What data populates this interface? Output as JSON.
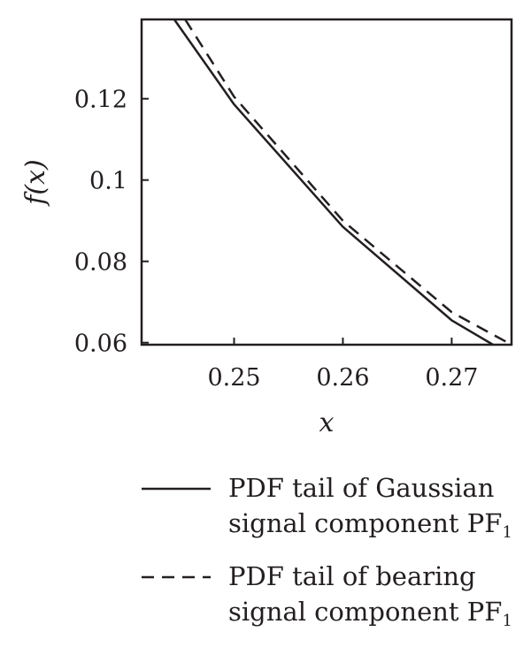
{
  "chart_data": {
    "type": "line",
    "xlabel": "x",
    "ylabel": "f(x)",
    "xlim": [
      0.2415,
      0.2755
    ],
    "ylim": [
      0.0595,
      0.1395
    ],
    "x_ticks": [
      0.25,
      0.26,
      0.27
    ],
    "x_tick_labels": [
      "0.25",
      "0.26",
      "0.27"
    ],
    "y_ticks": [
      0.06,
      0.08,
      0.1,
      0.12
    ],
    "y_tick_labels": [
      "0.06",
      "0.08",
      "0.1",
      "0.12"
    ],
    "grid": false,
    "legend_position": "bottom",
    "series": [
      {
        "name": "PDF tail of Gaussian signal component PF1",
        "style": "solid",
        "color": "#231f20",
        "x": [
          0.2445,
          0.25,
          0.26,
          0.27,
          0.2738
        ],
        "y": [
          0.1395,
          0.1186,
          0.0885,
          0.0655,
          0.0595
        ]
      },
      {
        "name": "PDF tail of bearing signal component PF1",
        "style": "dashed",
        "color": "#231f20",
        "x": [
          0.2455,
          0.25,
          0.26,
          0.27,
          0.2755
        ],
        "y": [
          0.1395,
          0.1205,
          0.09,
          0.0675,
          0.0595
        ]
      }
    ]
  },
  "legend": {
    "items": [
      {
        "line1": "PDF tail of Gaussian",
        "line2": "signal component PF",
        "subscript": "1",
        "style": "solid"
      },
      {
        "line1": "PDF tail of bearing",
        "line2": "signal component PF",
        "subscript": "1",
        "style": "dashed"
      }
    ]
  }
}
